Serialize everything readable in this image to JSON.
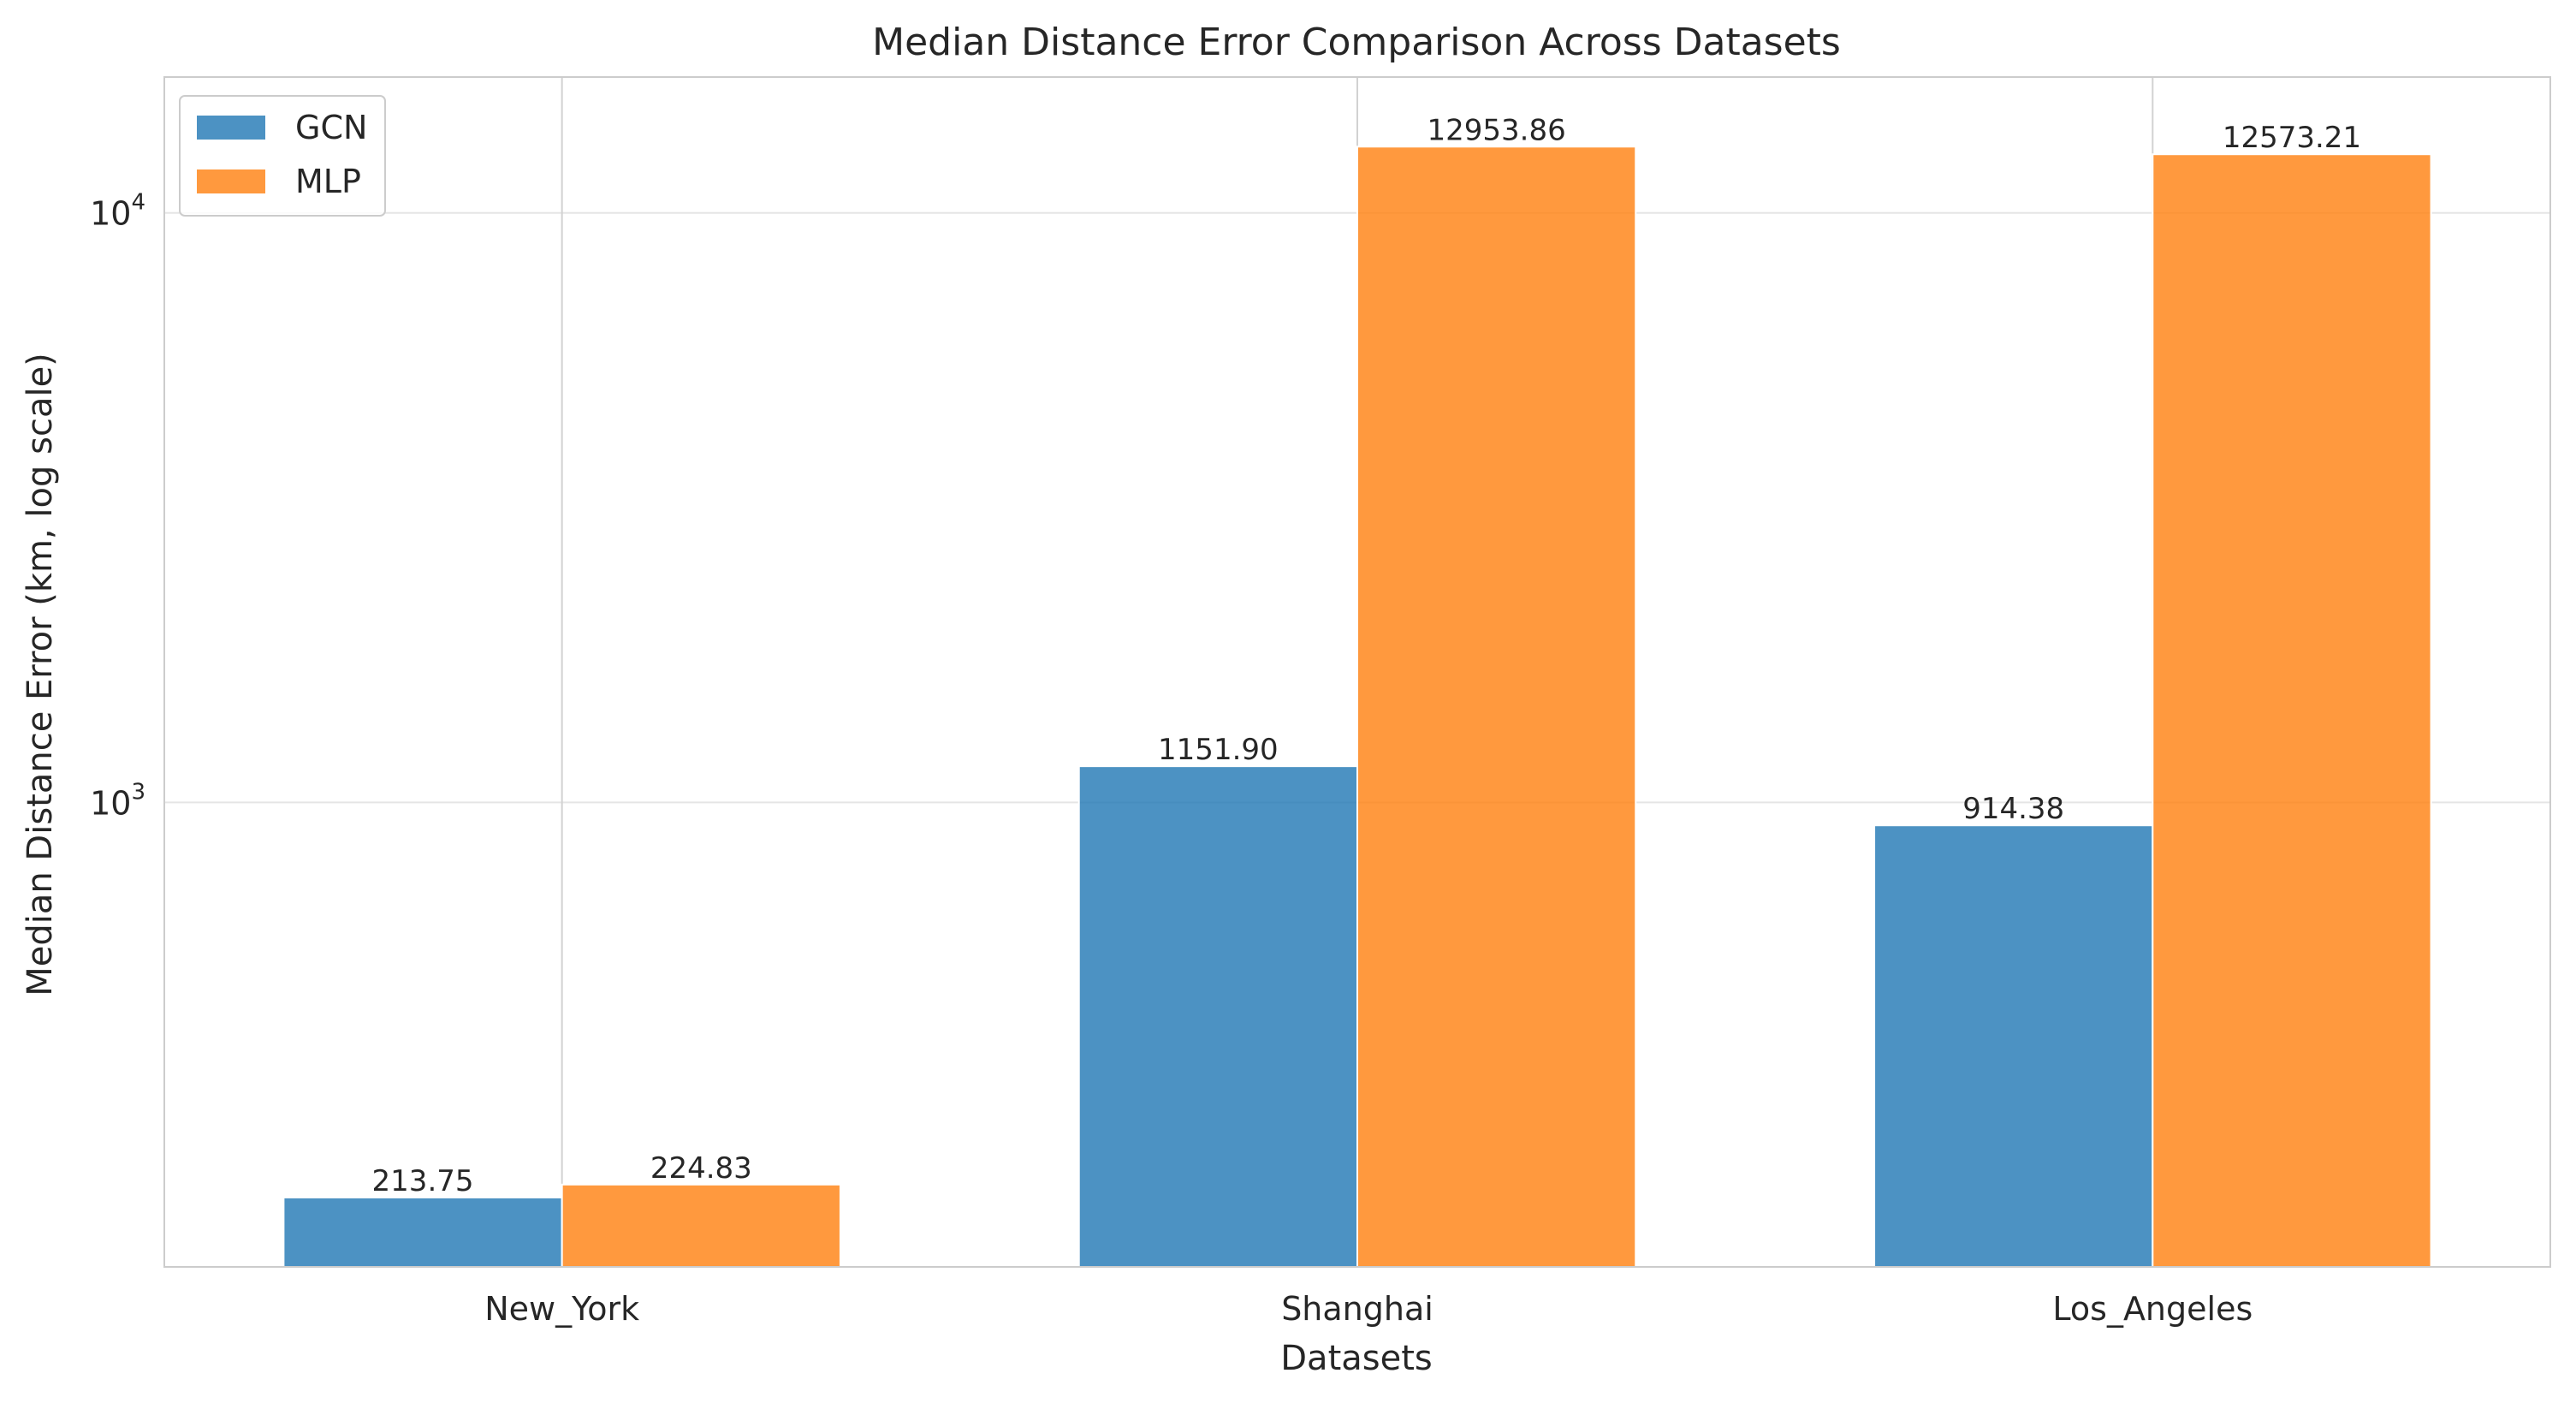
{
  "chart_data": {
    "type": "bar",
    "title": "Median Distance Error Comparison Across Datasets",
    "xlabel": "Datasets",
    "ylabel": "Median Distance Error (km, log scale)",
    "yscale": "log",
    "ylim": [
      163,
      17000
    ],
    "yticks": [
      {
        "value": 1000,
        "base": "10",
        "exp": "3"
      },
      {
        "value": 10000,
        "base": "10",
        "exp": "4"
      }
    ],
    "categories": [
      "New_York",
      "Shanghai",
      "Los_Angeles"
    ],
    "series": [
      {
        "name": "GCN",
        "color": "#1f77b4",
        "values": [
          213.75,
          1151.9,
          914.38
        ],
        "labels": [
          "213.75",
          "1151.90",
          "914.38"
        ]
      },
      {
        "name": "MLP",
        "color": "#ff7f0e",
        "values": [
          224.83,
          12953.86,
          12573.21
        ],
        "labels": [
          "224.83",
          "12953.86",
          "12573.21"
        ]
      }
    ],
    "grid": true,
    "legend_position": "top-left"
  }
}
